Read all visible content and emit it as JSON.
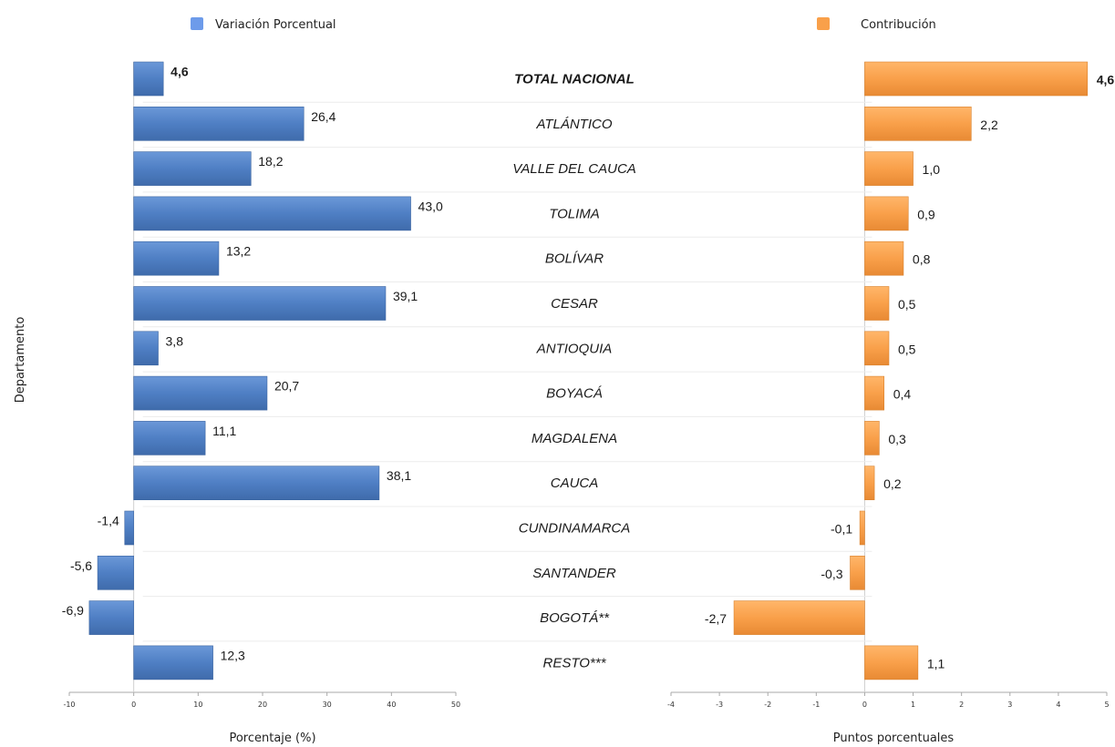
{
  "chart_data": [
    {
      "type": "bar",
      "orientation": "horizontal",
      "legend": "Variación Porcentual",
      "ylabel": "Departamento",
      "xlabel": "Porcentaje (%)",
      "categories": [
        "TOTAL NACIONAL",
        "ATLÁNTICO",
        "VALLE DEL CAUCA",
        "TOLIMA",
        "BOLÍVAR",
        "CESAR",
        "ANTIOQUIA",
        "BOYACÁ",
        "MAGDALENA",
        "CAUCA",
        "CUNDINAMARCA",
        "SANTANDER",
        "BOGOTÁ**",
        "RESTO***"
      ],
      "values": [
        4.6,
        26.4,
        18.2,
        43.0,
        13.2,
        39.1,
        3.8,
        20.7,
        11.1,
        38.1,
        -1.4,
        -5.6,
        -6.9,
        12.3
      ],
      "value_labels": [
        "4,6",
        "26,4",
        "18,2",
        "43,0",
        "13,2",
        "39,1",
        "3,8",
        "20,7",
        "11,1",
        "38,1",
        "-1,4",
        "-5,6",
        "-6,9",
        "12,3"
      ],
      "xlim": [
        -10,
        50
      ],
      "ticks": [
        "-10",
        "0",
        "10",
        "20",
        "30",
        "40",
        "50"
      ],
      "tick_values": [
        -10,
        0,
        10,
        20,
        30,
        40,
        50
      ],
      "color": "#4f7fc4"
    },
    {
      "type": "bar",
      "orientation": "horizontal",
      "legend": "Contribución",
      "xlabel": "Puntos porcentuales",
      "categories": [
        "TOTAL NACIONAL",
        "ATLÁNTICO",
        "VALLE DEL CAUCA",
        "TOLIMA",
        "BOLÍVAR",
        "CESAR",
        "ANTIOQUIA",
        "BOYACÁ",
        "MAGDALENA",
        "CAUCA",
        "CUNDINAMARCA",
        "SANTANDER",
        "BOGOTÁ**",
        "RESTO***"
      ],
      "values": [
        4.6,
        2.2,
        1.0,
        0.9,
        0.8,
        0.5,
        0.5,
        0.4,
        0.3,
        0.2,
        -0.1,
        -0.3,
        -2.7,
        1.1
      ],
      "value_labels": [
        "4,6",
        "2,2",
        "1,0",
        "0,9",
        "0,8",
        "0,5",
        "0,5",
        "0,4",
        "0,3",
        "0,2",
        "-0,1",
        "-0,3",
        "-2,7",
        "1,1"
      ],
      "xlim": [
        -4,
        5
      ],
      "ticks": [
        "-4",
        "-3",
        "-2",
        "-1",
        "0",
        "1",
        "2",
        "3",
        "4",
        "5"
      ],
      "tick_values": [
        -4,
        -3,
        -2,
        -1,
        0,
        1,
        2,
        3,
        4,
        5
      ],
      "color": "#f9a04a"
    }
  ]
}
